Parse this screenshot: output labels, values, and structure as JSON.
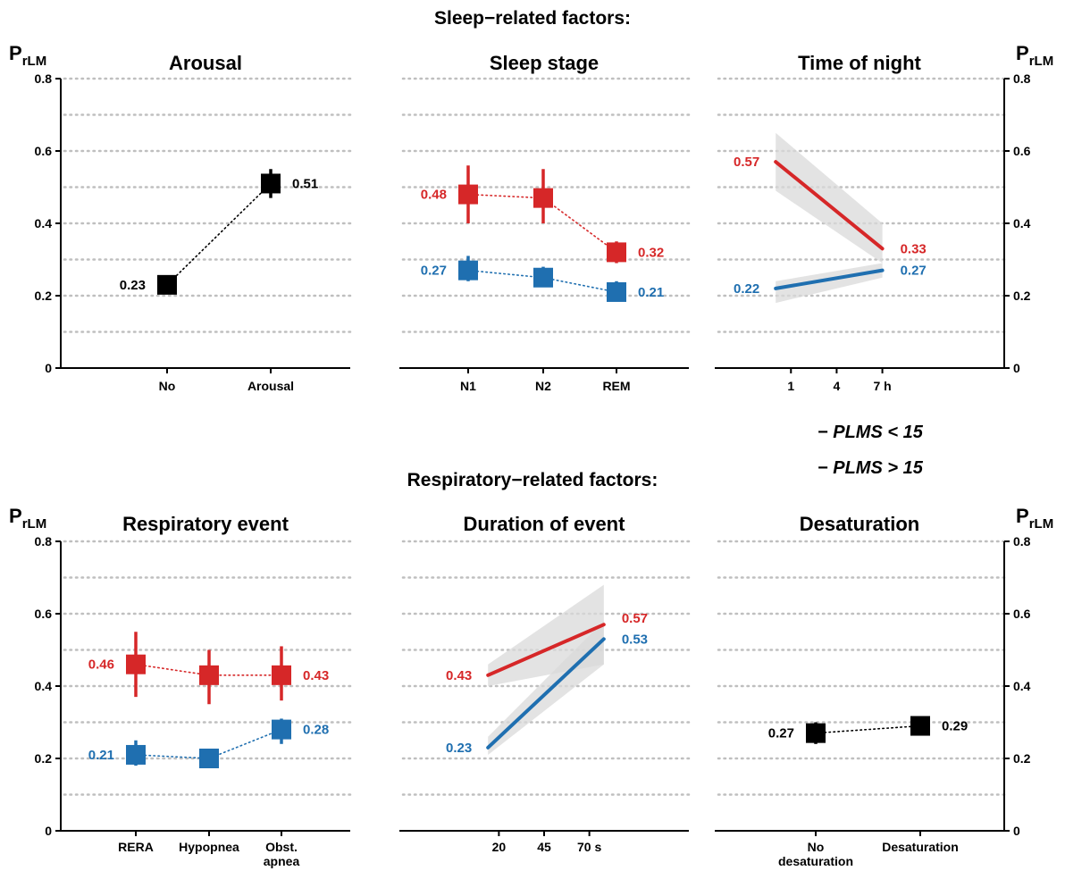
{
  "colors": {
    "blue": "#1f6fb0",
    "red": "#d62728",
    "black": "#000000",
    "band": "#d9d9d9",
    "grid": "#bfbfbf"
  },
  "sections": {
    "sleep": "Sleep−related factors:",
    "resp": "Respiratory−related factors:"
  },
  "ylabel": {
    "main": "P",
    "sub": "rLM"
  },
  "legend": [
    {
      "label": "− PLMS < 15",
      "color": "blue"
    },
    {
      "label": "− PLMS > 15",
      "color": "red"
    }
  ],
  "chart_data": [
    {
      "id": "arousal",
      "title": "Arousal",
      "type": "point-range",
      "categories": [
        "No",
        "Arousal"
      ],
      "ylim": [
        0,
        0.8
      ],
      "yticks": [
        "0",
        "0.2",
        "0.4",
        "0.6",
        "0.8"
      ],
      "yaxis": "left",
      "series": [
        {
          "color": "black",
          "values": [
            0.23,
            0.51
          ],
          "low": [
            0.22,
            0.47
          ],
          "high": [
            0.24,
            0.55
          ],
          "labels": [
            "0.23",
            "0.51"
          ],
          "labelSide": [
            "left",
            "right"
          ]
        }
      ]
    },
    {
      "id": "sleep-stage",
      "title": "Sleep stage",
      "type": "point-range",
      "categories": [
        "N1",
        "N2",
        "REM"
      ],
      "ylim": [
        0,
        0.8
      ],
      "yaxis": "none",
      "series": [
        {
          "color": "red",
          "values": [
            0.48,
            0.47,
            0.32
          ],
          "low": [
            0.4,
            0.4,
            0.29
          ],
          "high": [
            0.56,
            0.55,
            0.35
          ],
          "labels": [
            "0.48",
            null,
            "0.32"
          ],
          "labelSide": [
            "left",
            null,
            "right"
          ]
        },
        {
          "color": "blue",
          "values": [
            0.27,
            0.25,
            0.21
          ],
          "low": [
            0.24,
            0.23,
            0.19
          ],
          "high": [
            0.31,
            0.28,
            0.24
          ],
          "labels": [
            "0.27",
            null,
            "0.21"
          ],
          "labelSide": [
            "left",
            null,
            "right"
          ]
        }
      ]
    },
    {
      "id": "time-of-night",
      "title": "Time of night",
      "type": "line-band",
      "xticks": [
        "1",
        "4",
        "7 h"
      ],
      "xvalues": [
        1,
        4,
        7
      ],
      "xlim": [
        -4,
        15
      ],
      "ylim": [
        0,
        0.8
      ],
      "yticks": [
        "0",
        "0.2",
        "0.4",
        "0.6",
        "0.8"
      ],
      "yaxis": "right",
      "series": [
        {
          "color": "red",
          "x": [
            0,
            7
          ],
          "y": [
            0.57,
            0.33
          ],
          "low": [
            0.49,
            0.29
          ],
          "high": [
            0.65,
            0.4
          ],
          "labels": [
            "0.57",
            "0.33"
          ]
        },
        {
          "color": "blue",
          "x": [
            0,
            7
          ],
          "y": [
            0.22,
            0.27
          ],
          "low": [
            0.18,
            0.25
          ],
          "high": [
            0.24,
            0.29
          ],
          "labels": [
            "0.22",
            "0.27"
          ]
        }
      ]
    },
    {
      "id": "respiratory-event",
      "title": "Respiratory event",
      "type": "point-range",
      "categories": [
        "RERA",
        "Hypopnea",
        "Obst. apnea"
      ],
      "ylim": [
        0,
        0.8
      ],
      "yticks": [
        "0",
        "0.2",
        "0.4",
        "0.6",
        "0.8"
      ],
      "yaxis": "left",
      "series": [
        {
          "color": "red",
          "values": [
            0.46,
            0.43,
            0.43
          ],
          "low": [
            0.37,
            0.35,
            0.36
          ],
          "high": [
            0.55,
            0.5,
            0.51
          ],
          "labels": [
            "0.46",
            null,
            "0.43"
          ],
          "labelSide": [
            "left",
            null,
            "right"
          ]
        },
        {
          "color": "blue",
          "values": [
            0.21,
            0.2,
            0.28
          ],
          "low": [
            0.18,
            0.18,
            0.24
          ],
          "high": [
            0.25,
            0.22,
            0.31
          ],
          "labels": [
            "0.21",
            null,
            "0.28"
          ],
          "labelSide": [
            "left",
            null,
            "right"
          ]
        }
      ]
    },
    {
      "id": "duration-of-event",
      "title": "Duration of event",
      "type": "line-band",
      "xticks": [
        "20",
        "45",
        "70 s"
      ],
      "xvalues": [
        20,
        45,
        70
      ],
      "xlim": [
        -35,
        125
      ],
      "ylim": [
        0,
        0.8
      ],
      "yaxis": "none",
      "series": [
        {
          "color": "red",
          "x": [
            14,
            78
          ],
          "y": [
            0.43,
            0.57
          ],
          "low": [
            0.4,
            0.46
          ],
          "high": [
            0.46,
            0.68
          ],
          "labels": [
            "0.43",
            "0.57"
          ]
        },
        {
          "color": "blue",
          "x": [
            14,
            78
          ],
          "y": [
            0.23,
            0.53
          ],
          "low": [
            0.21,
            0.46
          ],
          "high": [
            0.26,
            0.58
          ],
          "labels": [
            "0.23",
            "0.53"
          ]
        }
      ]
    },
    {
      "id": "desaturation",
      "title": "Desaturation",
      "type": "point-range",
      "categories": [
        "No desaturation",
        "Desaturation"
      ],
      "ylim": [
        0,
        0.8
      ],
      "yticks": [
        "0",
        "0.2",
        "0.4",
        "0.6",
        "0.8"
      ],
      "yaxis": "right",
      "series": [
        {
          "color": "black",
          "values": [
            0.27,
            0.29
          ],
          "low": [
            0.24,
            0.27
          ],
          "high": [
            0.3,
            0.31
          ],
          "labels": [
            "0.27",
            "0.29"
          ],
          "labelSide": [
            "left",
            "right"
          ]
        }
      ]
    }
  ]
}
